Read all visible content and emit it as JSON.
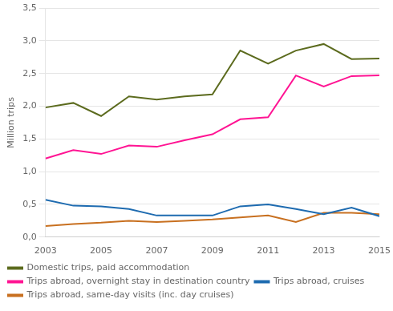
{
  "chart_data": {
    "type": "line",
    "y_label": "Million trips",
    "x": [
      2003,
      2004,
      2005,
      2006,
      2007,
      2008,
      2009,
      2010,
      2011,
      2012,
      2013,
      2014,
      2015
    ],
    "series": [
      {
        "name": "Domestic trips, paid accommodation",
        "color": "#5c6b1e",
        "values": [
          1.98,
          2.05,
          1.85,
          2.15,
          2.1,
          2.15,
          2.18,
          2.85,
          2.65,
          2.85,
          2.95,
          2.72,
          2.73
        ]
      },
      {
        "name": "Trips abroad, overnight stay in destination country",
        "color": "#ff1493",
        "values": [
          1.2,
          1.33,
          1.27,
          1.4,
          1.38,
          1.48,
          1.57,
          1.8,
          1.83,
          2.47,
          2.3,
          2.46,
          2.47
        ]
      },
      {
        "name": "Trips abroad, cruises",
        "color": "#1e6bb0",
        "values": [
          0.57,
          0.48,
          0.47,
          0.43,
          0.33,
          0.33,
          0.33,
          0.47,
          0.5,
          0.43,
          0.35,
          0.45,
          0.32
        ]
      },
      {
        "name": "Trips abroad, same-day visits (inc. day cruises)",
        "color": "#c87020",
        "values": [
          0.17,
          0.2,
          0.22,
          0.25,
          0.23,
          0.25,
          0.27,
          0.3,
          0.33,
          0.23,
          0.37,
          0.37,
          0.35
        ]
      }
    ],
    "xlim": [
      2003,
      2015
    ],
    "xticks": [
      2003,
      2005,
      2007,
      2009,
      2011,
      2013,
      2015
    ],
    "ylim": [
      0,
      3.5
    ],
    "yticks": [
      {
        "value": 0.0,
        "label": "0,0"
      },
      {
        "value": 0.5,
        "label": "0,5"
      },
      {
        "value": 1.0,
        "label": "1,0"
      },
      {
        "value": 1.5,
        "label": "1,5"
      },
      {
        "value": 2.0,
        "label": "2,0"
      },
      {
        "value": 2.5,
        "label": "2,5"
      },
      {
        "value": 3.0,
        "label": "3,0"
      },
      {
        "value": 3.5,
        "label": "3,5"
      }
    ],
    "grid": "y",
    "legend": "bottom"
  }
}
